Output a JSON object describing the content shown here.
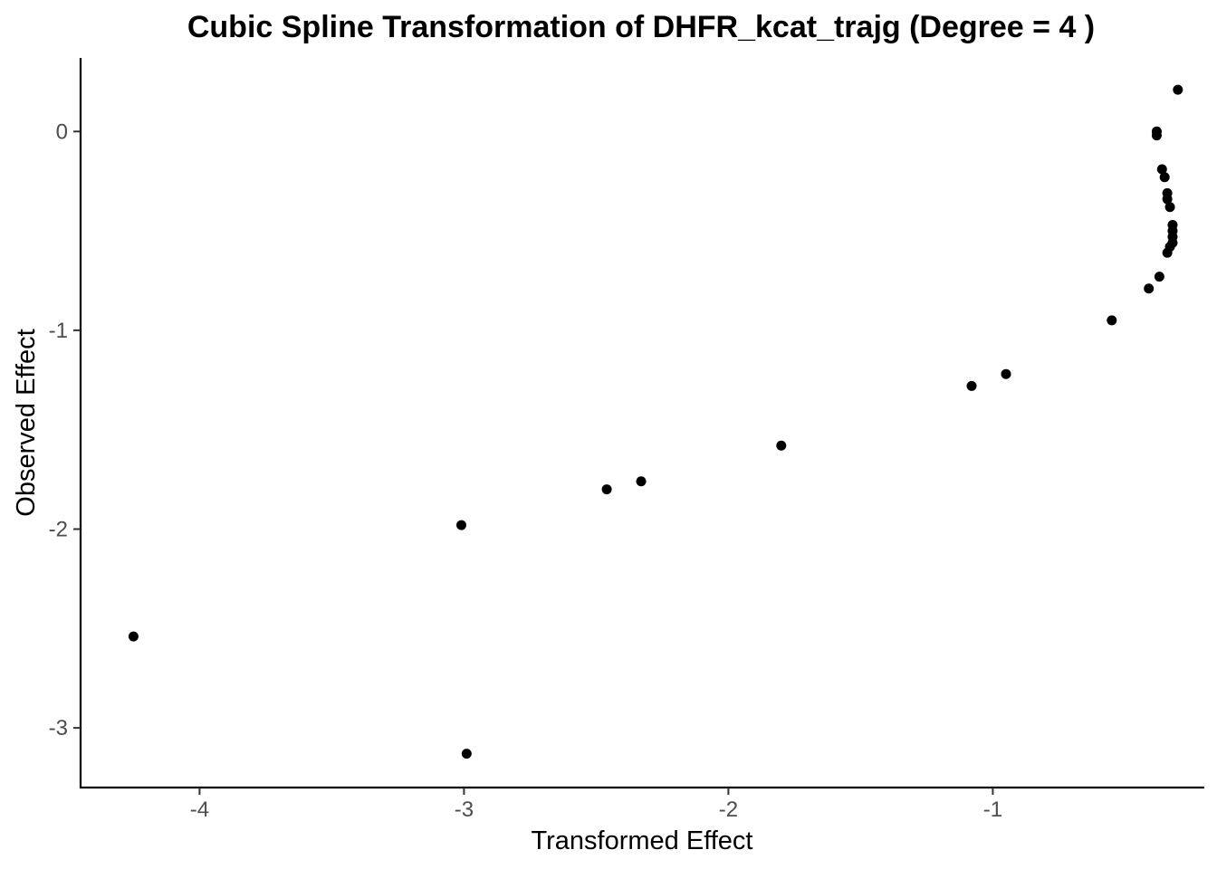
{
  "chart_data": {
    "type": "scatter",
    "title": "Cubic Spline Transformation of DHFR_kcat_trajg (Degree = 4 )",
    "xlabel": "Transformed Effect",
    "ylabel": "Observed Effect",
    "xlim": [
      -4.45,
      -0.2
    ],
    "ylim": [
      -3.3,
      0.37
    ],
    "xticks": [
      -4,
      -3,
      -2,
      -1
    ],
    "xtick_labels": [
      "-4",
      "-3",
      "-2",
      "-1"
    ],
    "yticks": [
      0,
      -1,
      -2,
      -3
    ],
    "ytick_labels": [
      "0",
      "-1",
      "-2",
      "-3"
    ],
    "grid": false,
    "legend": "none",
    "point_color": "#000000",
    "points": [
      {
        "x": -4.25,
        "y": -2.54
      },
      {
        "x": -2.99,
        "y": -3.13
      },
      {
        "x": -3.01,
        "y": -1.98
      },
      {
        "x": -2.46,
        "y": -1.8
      },
      {
        "x": -2.33,
        "y": -1.76
      },
      {
        "x": -1.8,
        "y": -1.58
      },
      {
        "x": -1.08,
        "y": -1.28
      },
      {
        "x": -0.95,
        "y": -1.22
      },
      {
        "x": -0.55,
        "y": -0.95
      },
      {
        "x": -0.41,
        "y": -0.79
      },
      {
        "x": -0.37,
        "y": -0.73
      },
      {
        "x": -0.34,
        "y": -0.61
      },
      {
        "x": -0.33,
        "y": -0.58
      },
      {
        "x": -0.32,
        "y": -0.56
      },
      {
        "x": -0.32,
        "y": -0.53
      },
      {
        "x": -0.32,
        "y": -0.5
      },
      {
        "x": -0.32,
        "y": -0.47
      },
      {
        "x": -0.33,
        "y": -0.38
      },
      {
        "x": -0.34,
        "y": -0.34
      },
      {
        "x": -0.34,
        "y": -0.31
      },
      {
        "x": -0.35,
        "y": -0.23
      },
      {
        "x": -0.36,
        "y": -0.19
      },
      {
        "x": -0.38,
        "y": 0.0
      },
      {
        "x": -0.38,
        "y": -0.02
      },
      {
        "x": -0.3,
        "y": 0.21
      }
    ]
  }
}
